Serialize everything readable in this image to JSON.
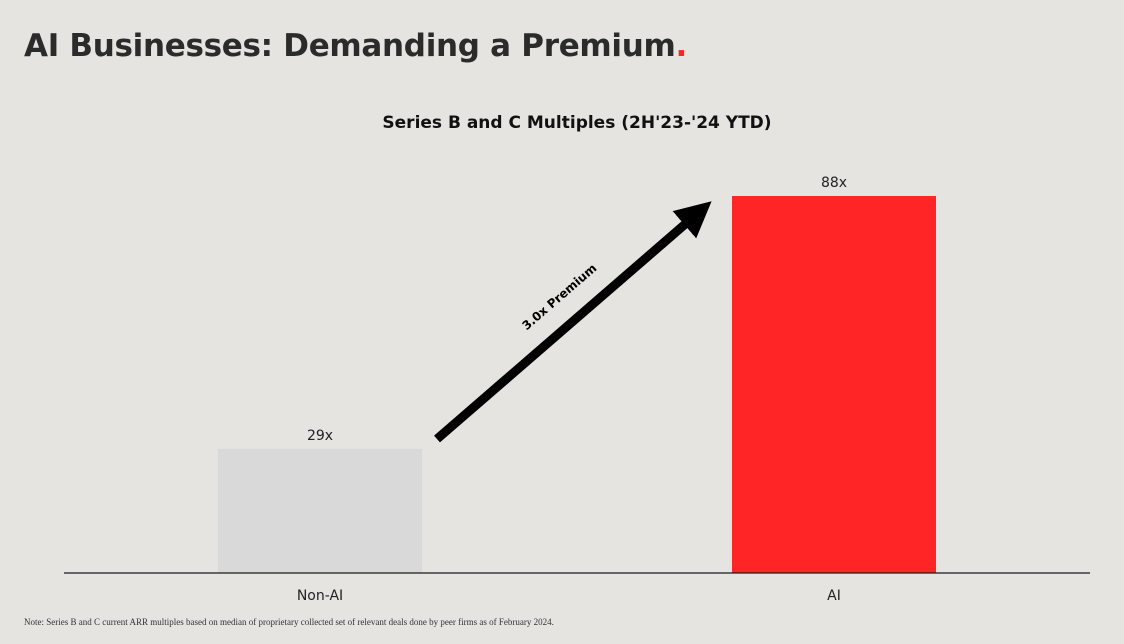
{
  "page": {
    "title": "AI Businesses: Demanding a Premium",
    "title_accent": ".",
    "accent_color": "#ff2426",
    "background": "#e6e4e1",
    "footnote": "Note: Series B and C current ARR multiples based on median of proprietary collected set of relevant deals done by peer firms as of February 2024."
  },
  "chart_data": {
    "type": "bar",
    "title": "Series B and C Multiples (2H'23-'24 YTD)",
    "categories": [
      "Non-AI",
      "AI"
    ],
    "values": [
      29,
      88
    ],
    "data_labels": [
      "29x",
      "88x"
    ],
    "bar_colors": [
      "#d9d9d9",
      "#ff2426"
    ],
    "ylim": [
      0,
      88
    ],
    "grid": false,
    "annotation": {
      "text": "3.0x Premium",
      "type": "arrow",
      "from_category": "Non-AI",
      "to_category": "AI"
    }
  }
}
